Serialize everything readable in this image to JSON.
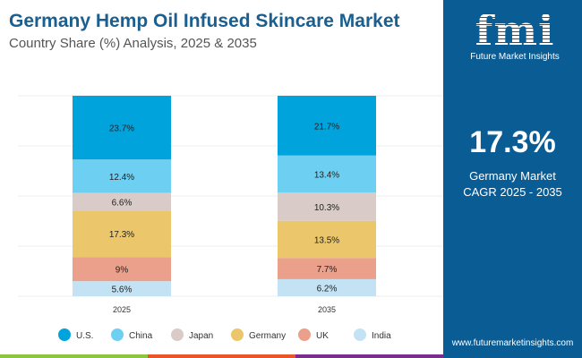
{
  "header": {
    "title": "Germany Hemp Oil Infused Skincare Market",
    "subtitle": "Country Share (%) Analysis, 2025 & 2035"
  },
  "sidebar": {
    "logo_text": "fmi",
    "brand": "Future Market Insights",
    "cagr_value": "17.3%",
    "cagr_label_1": "Germany Market",
    "cagr_label_2": "CAGR 2025 - 2035",
    "url": "www.futuremarketinsights.com"
  },
  "chart_data": {
    "type": "bar",
    "stacked": true,
    "normalized": true,
    "categories": [
      "2025",
      "2035"
    ],
    "series": [
      {
        "name": "U.S.",
        "values": [
          23.7,
          21.7
        ],
        "labels": [
          "23.7%",
          "21.7%"
        ],
        "color": "#00a3dc"
      },
      {
        "name": "China",
        "values": [
          12.4,
          13.4
        ],
        "labels": [
          "12.4%",
          "13.4%"
        ],
        "color": "#6dcff2"
      },
      {
        "name": "Japan",
        "values": [
          6.6,
          10.3
        ],
        "labels": [
          "6.6%",
          "10.3%"
        ],
        "color": "#d8cbc8"
      },
      {
        "name": "Germany",
        "values": [
          17.3,
          13.5
        ],
        "labels": [
          "17.3%",
          "13.5%"
        ],
        "color": "#ebc66a"
      },
      {
        "name": "UK",
        "values": [
          9,
          7.7
        ],
        "labels": [
          "9%",
          "7.7%"
        ],
        "color": "#eba08b"
      },
      {
        "name": "India",
        "values": [
          5.6,
          6.2
        ],
        "labels": [
          "5.6%",
          "6.2%"
        ],
        "color": "#c3e3f4"
      }
    ],
    "grid": true,
    "legend": "bottom"
  },
  "colors": {
    "panel": "#0a5c94",
    "title": "#1a5f8f",
    "stripe": [
      "#8cc63f",
      "#e8562a",
      "#7b2d8e"
    ]
  }
}
